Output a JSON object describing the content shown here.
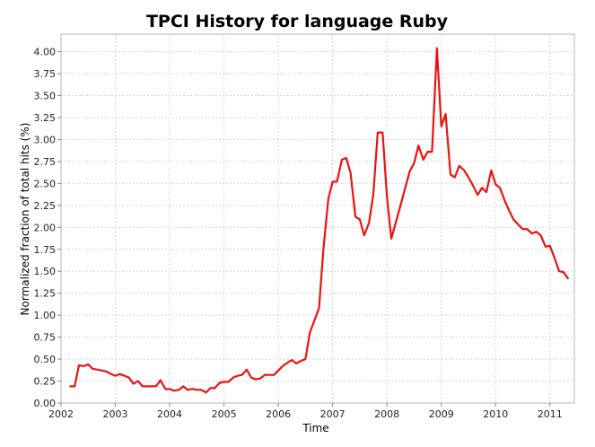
{
  "chart_data": {
    "type": "line",
    "title": "TPCI History for language Ruby",
    "xlabel": "Time",
    "ylabel": "Normalized fraction of total hits (%)",
    "xlim": [
      2002.0,
      2011.45
    ],
    "ylim": [
      0.0,
      4.2
    ],
    "grid": true,
    "x_ticks": [
      "2002",
      "2003",
      "2004",
      "2005",
      "2006",
      "2007",
      "2008",
      "2009",
      "2010",
      "2011"
    ],
    "y_ticks": [
      "0.00",
      "0.25",
      "0.50",
      "0.75",
      "1.00",
      "1.25",
      "1.50",
      "1.75",
      "2.00",
      "2.25",
      "2.50",
      "2.75",
      "3.00",
      "3.25",
      "3.50",
      "3.75",
      "4.00"
    ],
    "colors": {
      "line": "#ee1111",
      "grid": "#d6d6d6",
      "plot_border": "#b4b4b4"
    },
    "series": [
      {
        "x": [
          2002.17,
          2002.25,
          2002.33,
          2002.42,
          2002.5,
          2002.58,
          2002.67,
          2002.75,
          2002.83,
          2002.92,
          2003.0,
          2003.08,
          2003.17,
          2003.25,
          2003.33,
          2003.42,
          2003.5,
          2003.58,
          2003.67,
          2003.75,
          2003.83,
          2003.92,
          2004.0,
          2004.08,
          2004.17,
          2004.25,
          2004.33,
          2004.42,
          2004.5,
          2004.58,
          2004.67,
          2004.75,
          2004.83,
          2004.92,
          2005.0,
          2005.08,
          2005.17,
          2005.25,
          2005.33,
          2005.42,
          2005.5,
          2005.58,
          2005.67,
          2005.75,
          2005.83,
          2005.92,
          2006.0,
          2006.08,
          2006.17,
          2006.25,
          2006.33,
          2006.42,
          2006.5,
          2006.58,
          2006.75,
          2006.83,
          2006.92,
          2007.0,
          2007.08,
          2007.17,
          2007.25,
          2007.33,
          2007.42,
          2007.5,
          2007.58,
          2007.67,
          2007.75,
          2007.83,
          2007.92,
          2008.0,
          2008.08,
          2008.25,
          2008.42,
          2008.5,
          2008.58,
          2008.67,
          2008.75,
          2008.83,
          2008.92,
          2009.0,
          2009.08,
          2009.17,
          2009.25,
          2009.33,
          2009.42,
          2009.5,
          2009.58,
          2009.67,
          2009.75,
          2009.83,
          2009.92,
          2010.0,
          2010.08,
          2010.17,
          2010.25,
          2010.33,
          2010.42,
          2010.5,
          2010.58,
          2010.67,
          2010.75,
          2010.83,
          2010.92,
          2011.0,
          2011.08,
          2011.17,
          2011.25,
          2011.33
        ],
        "y": [
          0.19,
          0.19,
          0.43,
          0.42,
          0.44,
          0.39,
          0.38,
          0.37,
          0.36,
          0.33,
          0.31,
          0.33,
          0.31,
          0.29,
          0.22,
          0.25,
          0.19,
          0.19,
          0.19,
          0.19,
          0.26,
          0.16,
          0.16,
          0.14,
          0.15,
          0.19,
          0.15,
          0.16,
          0.15,
          0.15,
          0.12,
          0.17,
          0.17,
          0.23,
          0.24,
          0.24,
          0.29,
          0.31,
          0.32,
          0.38,
          0.29,
          0.27,
          0.28,
          0.32,
          0.32,
          0.32,
          0.37,
          0.42,
          0.46,
          0.49,
          0.45,
          0.48,
          0.5,
          0.8,
          1.08,
          1.75,
          2.32,
          2.52,
          2.52,
          2.77,
          2.79,
          2.62,
          2.12,
          2.09,
          1.91,
          2.05,
          2.38,
          3.08,
          3.08,
          2.35,
          1.87,
          2.25,
          2.64,
          2.73,
          2.93,
          2.77,
          2.86,
          2.86,
          4.04,
          3.15,
          3.29,
          2.6,
          2.57,
          2.7,
          2.65,
          2.57,
          2.48,
          2.37,
          2.45,
          2.4,
          2.65,
          2.49,
          2.45,
          2.3,
          2.19,
          2.09,
          2.03,
          1.98,
          1.98,
          1.93,
          1.95,
          1.91,
          1.78,
          1.79,
          1.66,
          1.5,
          1.49,
          1.42
        ]
      }
    ]
  }
}
